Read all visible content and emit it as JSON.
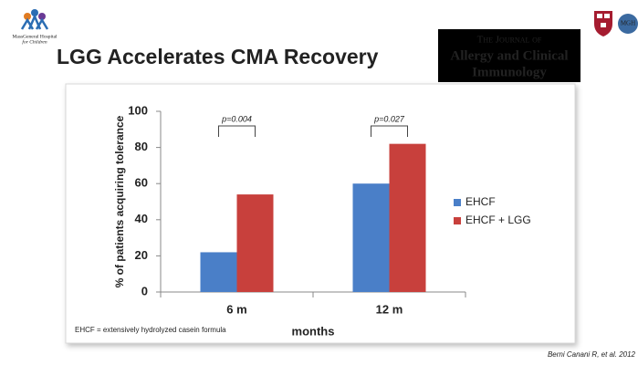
{
  "slide": {
    "title": "LGG Accelerates CMA Recovery",
    "logo_left": [
      "MassGeneral Hospital",
      "for Children"
    ],
    "journal": [
      "The Journal of",
      "Allergy and Clinical",
      "Immunology"
    ],
    "logo_right": "MGH",
    "citation": "Berni Canani R, et al. 2012"
  },
  "chart_data": {
    "type": "bar",
    "categories": [
      "6 m",
      "12 m"
    ],
    "series": [
      {
        "name": "EHCF",
        "color": "#4a7fc8",
        "values": [
          22,
          60
        ]
      },
      {
        "name": "EHCF + LGG",
        "color": "#c8403c",
        "values": [
          54,
          82
        ]
      }
    ],
    "ylim": [
      0,
      100
    ],
    "yticks": [
      0,
      20,
      40,
      60,
      80,
      100
    ],
    "xlabel": "months",
    "ylabel": "% of patients acquiring tolerance",
    "annotations": [
      "p=0.004",
      "p=0.027"
    ],
    "footnote": "EHCF = extensively hydrolyzed casein formula",
    "legend": "right",
    "grid": false
  }
}
